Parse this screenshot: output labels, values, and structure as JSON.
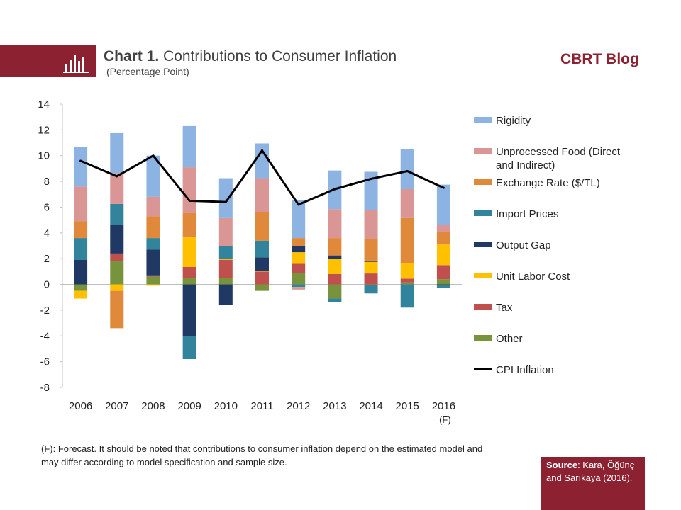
{
  "header": {
    "title_bold": "Chart 1.",
    "title_rest": " Contributions  to Consumer Inflation",
    "subtitle": "(Percentage Point)",
    "brand": "CBRT Blog",
    "icon": "bar-chart-icon"
  },
  "footnote": "(F): Forecast. It should be noted that contributions to consumer inflation depend on the estimated model and may differ according to model specification and sample size.",
  "source": {
    "label": "Source",
    "text": ": Kara, Öğünç and Sarıkaya (2016)."
  },
  "chart_data": {
    "type": "bar",
    "stacked": true,
    "categories": [
      "2006",
      "2007",
      "2008",
      "2009",
      "2010",
      "2011",
      "2012",
      "2013",
      "2014",
      "2015",
      "2016"
    ],
    "category_sublabels": [
      "",
      "",
      "",
      "",
      "",
      "",
      "",
      "",
      "",
      "",
      "(F)"
    ],
    "ylim": [
      -8,
      14
    ],
    "yticks": [
      -8,
      -6,
      -4,
      -2,
      0,
      2,
      4,
      6,
      8,
      10,
      12,
      14
    ],
    "grid": false,
    "legend_position": "right",
    "series": [
      {
        "name": "Other",
        "color": "#77933c",
        "values": [
          -0.5,
          1.8,
          0.6,
          0.5,
          0.5,
          -0.5,
          0.9,
          -1.1,
          -0.05,
          0.15,
          0.4
        ]
      },
      {
        "name": "Tax",
        "color": "#c0504d",
        "values": [
          0.0,
          0.6,
          0.1,
          0.85,
          1.4,
          1.0,
          0.7,
          0.8,
          0.85,
          0.3,
          1.1
        ]
      },
      {
        "name": "Unit Labor Cost",
        "color": "#ffc000",
        "values": [
          -0.6,
          -0.5,
          -0.1,
          2.3,
          0.05,
          0.05,
          0.9,
          1.2,
          0.9,
          1.2,
          1.6
        ]
      },
      {
        "name": "Output Gap",
        "color": "#1f3864",
        "values": [
          1.9,
          2.2,
          2.0,
          -4.0,
          -1.6,
          1.05,
          0.5,
          0.25,
          0.1,
          0.0,
          -0.1
        ]
      },
      {
        "name": "Import Prices",
        "color": "#31849b",
        "values": [
          1.7,
          1.65,
          0.9,
          -1.8,
          1.0,
          1.3,
          -0.2,
          -0.3,
          -0.65,
          -1.8,
          -0.2
        ]
      },
      {
        "name": "Exchange Rate ($/TL)",
        "color": "#e0893a",
        "values": [
          1.3,
          -2.9,
          1.7,
          1.9,
          0.0,
          2.2,
          0.6,
          1.35,
          1.65,
          3.5,
          1.0
        ]
      },
      {
        "name": "Unprocessed Food (Direct and Indirect)",
        "color": "#d99694",
        "values": [
          2.7,
          2.4,
          1.5,
          3.55,
          2.2,
          2.65,
          -0.2,
          2.25,
          2.3,
          2.25,
          0.55
        ]
      },
      {
        "name": "Rigidity",
        "color": "#8db3e2",
        "values": [
          3.1,
          3.1,
          3.2,
          3.2,
          3.1,
          2.7,
          2.95,
          3.0,
          2.95,
          3.1,
          3.1
        ]
      }
    ],
    "line_series": {
      "name": "CPI Inflation",
      "color": "#000000",
      "values": [
        9.6,
        8.4,
        10.0,
        6.5,
        6.4,
        10.4,
        6.2,
        7.4,
        8.2,
        8.8,
        7.5
      ]
    },
    "legend_order": [
      "Rigidity",
      "Unprocessed Food (Direct and Indirect)",
      "Exchange Rate ($/TL)",
      "Import Prices",
      "Output Gap",
      "Unit Labor Cost",
      "Tax",
      "Other",
      "CPI Inflation"
    ]
  }
}
